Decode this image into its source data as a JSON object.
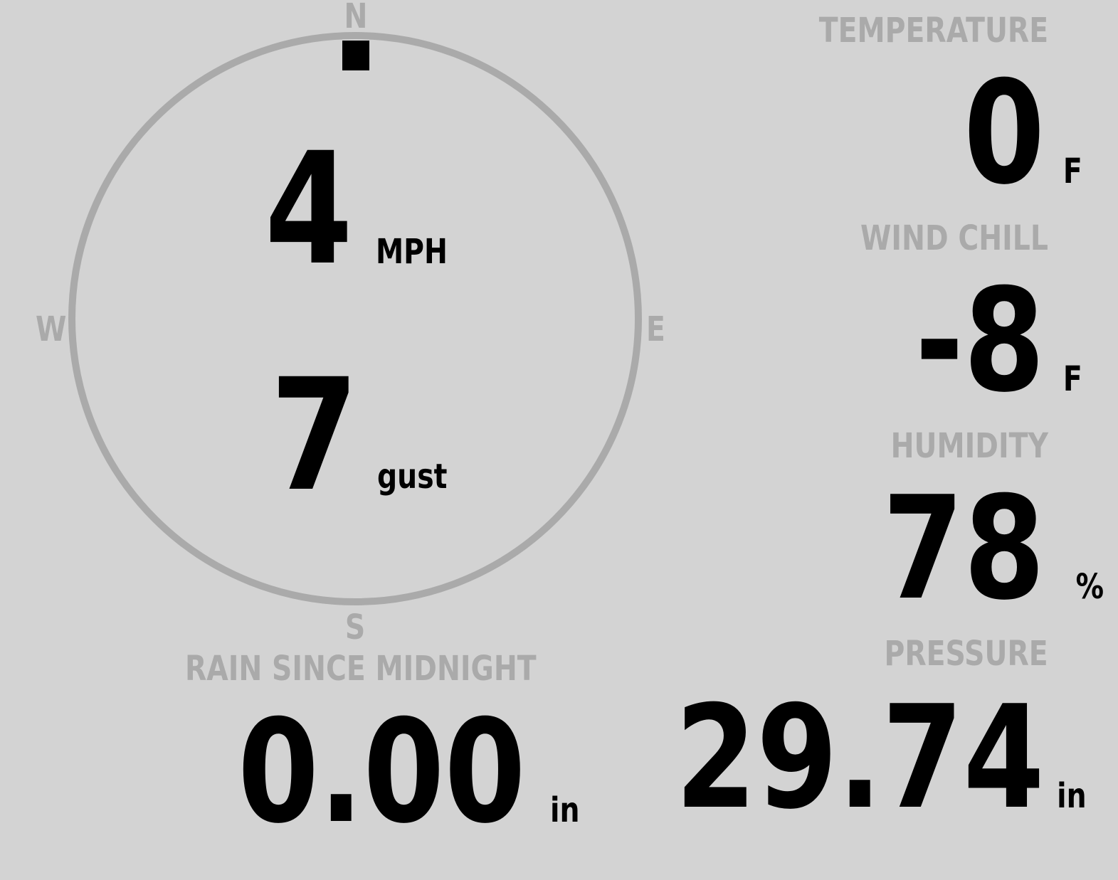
{
  "colors": {
    "background": "#d3d3d3",
    "label": "#aaaaaa",
    "value": "#000000",
    "compass_ring": "#aaaaaa",
    "wind_marker": "#000000"
  },
  "compass": {
    "north": "N",
    "south": "S",
    "east": "E",
    "west": "W",
    "wind_direction_deg": 0
  },
  "wind": {
    "speed": "4",
    "speed_unit": "MPH",
    "gust": "7",
    "gust_unit": "gust"
  },
  "temperature": {
    "label": "TEMPERATURE",
    "value": "0",
    "unit": "F"
  },
  "wind_chill": {
    "label": "WIND CHILL",
    "value": "-8",
    "unit": "F"
  },
  "humidity": {
    "label": "HUMIDITY",
    "value": "78",
    "unit": "%"
  },
  "pressure": {
    "label": "PRESSURE",
    "value": "29.74",
    "unit": "in"
  },
  "rain": {
    "label": "RAIN SINCE MIDNIGHT",
    "value": "0.00",
    "unit": "in"
  }
}
